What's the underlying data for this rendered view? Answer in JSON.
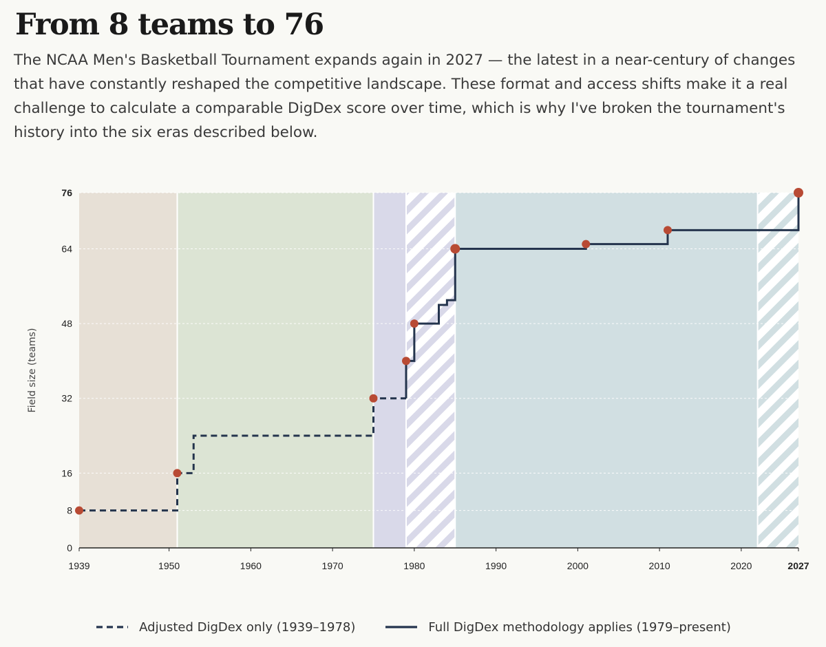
{
  "title": "From 8 teams to 76",
  "subtitle": "The NCAA Men's Basketball Tournament expands again in 2027 — the latest in a near-century of changes that have constantly reshaped the competitive landscape. These format and access shifts make it a real challenge to calculate a comparable DigDex score over time, which is why I've broken the tournament's history into the six eras described below.",
  "colors": {
    "line": "#24344d",
    "marker": "#b84a34",
    "era_1": "#e7e0d6",
    "era_2": "#dce4d4",
    "era_3": "#d9d9e9",
    "era_4_stripe": "#d9d9e9",
    "era_5": "#d1dfe2",
    "era_6_stripe": "#d1dfe2",
    "grid": "#ffffff",
    "axis": "#222222"
  },
  "chart_data": {
    "type": "line",
    "step": true,
    "ylabel": "Field size (teams)",
    "xlabel": "",
    "xlim": [
      1939,
      2027
    ],
    "ylim": [
      0,
      76
    ],
    "x_ticks": [
      1939,
      1950,
      1960,
      1970,
      1980,
      1990,
      2000,
      2010,
      2020,
      2027
    ],
    "x_ticks_bold": [
      2027
    ],
    "y_ticks": [
      0,
      8,
      16,
      32,
      48,
      64,
      76
    ],
    "y_ticks_bold": [
      76
    ],
    "grid": true,
    "eras": [
      {
        "start": 1939,
        "end": 1951,
        "fill": "era_1",
        "pattern": "solid"
      },
      {
        "start": 1951,
        "end": 1975,
        "fill": "era_2",
        "pattern": "solid"
      },
      {
        "start": 1975,
        "end": 1979,
        "fill": "era_3",
        "pattern": "solid"
      },
      {
        "start": 1979,
        "end": 1985,
        "fill": "era_4_stripe",
        "pattern": "striped"
      },
      {
        "start": 1985,
        "end": 2022,
        "fill": "era_5",
        "pattern": "solid"
      },
      {
        "start": 2022,
        "end": 2027,
        "fill": "era_6_stripe",
        "pattern": "striped"
      }
    ],
    "series": [
      {
        "name": "Adjusted DigDex only (1939–1978)",
        "style": "dashed",
        "points": [
          [
            1939,
            8
          ],
          [
            1951,
            16
          ],
          [
            1953,
            24
          ],
          [
            1975,
            32
          ],
          [
            1979,
            32
          ]
        ]
      },
      {
        "name": "Full DigDex methodology applies (1979–present)",
        "style": "solid",
        "points": [
          [
            1979,
            40
          ],
          [
            1980,
            48
          ],
          [
            1983,
            52
          ],
          [
            1984,
            53
          ],
          [
            1985,
            64
          ],
          [
            2001,
            65
          ],
          [
            2011,
            68
          ],
          [
            2027,
            76
          ]
        ]
      }
    ],
    "markers": [
      {
        "x": 1939,
        "y": 8,
        "size": "normal"
      },
      {
        "x": 1951,
        "y": 16,
        "size": "normal"
      },
      {
        "x": 1975,
        "y": 32,
        "size": "normal"
      },
      {
        "x": 1979,
        "y": 40,
        "size": "normal"
      },
      {
        "x": 1980,
        "y": 48,
        "size": "normal"
      },
      {
        "x": 1985,
        "y": 64,
        "size": "large"
      },
      {
        "x": 2001,
        "y": 65,
        "size": "normal"
      },
      {
        "x": 2011,
        "y": 68,
        "size": "normal"
      },
      {
        "x": 2027,
        "y": 76,
        "size": "large"
      }
    ]
  }
}
